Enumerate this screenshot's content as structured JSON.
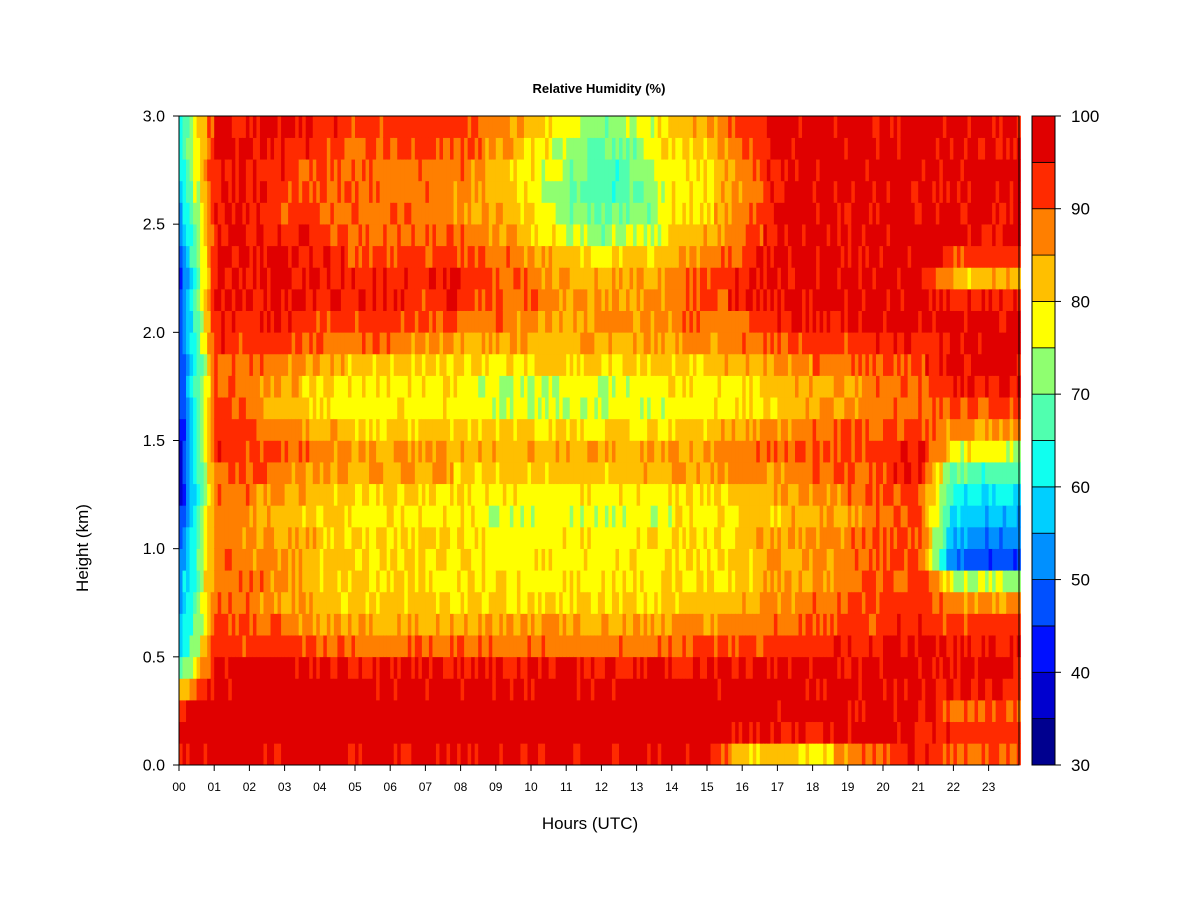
{
  "chart_data": {
    "type": "heatmap",
    "title": "Relative Humidity (%)",
    "xlabel": "Hours (UTC)",
    "ylabel": "Height (km)",
    "xlim": [
      0,
      23.9
    ],
    "ylim": [
      0.0,
      3.0
    ],
    "x_tick_labels": [
      "00",
      "01",
      "02",
      "03",
      "04",
      "05",
      "06",
      "07",
      "08",
      "09",
      "10",
      "11",
      "12",
      "13",
      "14",
      "15",
      "16",
      "17",
      "18",
      "19",
      "20",
      "21",
      "22",
      "23"
    ],
    "y_tick_labels": [
      "0.0",
      "0.5",
      "1.0",
      "1.5",
      "2.0",
      "2.5",
      "3.0"
    ],
    "y_ticks": [
      0.0,
      0.5,
      1.0,
      1.5,
      2.0,
      2.5,
      3.0
    ],
    "colorbar": {
      "min": 30,
      "max": 100,
      "tick_values": [
        30,
        40,
        50,
        60,
        70,
        80,
        90,
        100
      ],
      "tick_labels": [
        "30",
        "40",
        "50",
        "60",
        "70",
        "80",
        "90",
        "100"
      ],
      "levels": [
        30,
        35,
        40,
        45,
        50,
        55,
        60,
        65,
        70,
        75,
        80,
        85,
        90,
        95,
        100
      ],
      "colors": [
        "#00008f",
        "#0000cf",
        "#0010ff",
        "#0050ff",
        "#0090ff",
        "#00cfff",
        "#10ffef",
        "#50ffaf",
        "#8fff70",
        "#ffff00",
        "#ffbf00",
        "#ff7f00",
        "#ff2a00",
        "#e00000",
        "#800000"
      ]
    },
    "x_resolution_hours": 0.1,
    "y_resolution_km": 0.1,
    "y_values_km": [
      0.05,
      0.15,
      0.25,
      0.35,
      0.45,
      0.55,
      0.65,
      0.75,
      0.85,
      0.95,
      1.05,
      1.15,
      1.25,
      1.35,
      1.45,
      1.55,
      1.65,
      1.75,
      1.85,
      1.95,
      2.05,
      2.15,
      2.25,
      2.35,
      2.45,
      2.55,
      2.65,
      2.75,
      2.85,
      2.95
    ],
    "hour_columns": [
      {
        "hour": 0,
        "rh": [
          97,
          97,
          96,
          82,
          68,
          60,
          56,
          54,
          54,
          52,
          48,
          44,
          40,
          40,
          40,
          42,
          44,
          44,
          44,
          46,
          48,
          48,
          44,
          48,
          52,
          56,
          58,
          60,
          62,
          62
        ]
      },
      {
        "hour": 1,
        "rh": [
          97,
          98,
          98,
          97,
          96,
          92,
          90,
          88,
          88,
          88,
          88,
          88,
          90,
          92,
          94,
          94,
          92,
          90,
          90,
          94,
          96,
          96,
          96,
          96,
          96,
          96,
          96,
          96,
          96,
          96
        ]
      },
      {
        "hour": 2,
        "rh": [
          97,
          98,
          98,
          98,
          97,
          92,
          89,
          88,
          88,
          88,
          86,
          86,
          88,
          90,
          92,
          90,
          88,
          88,
          88,
          90,
          94,
          95,
          96,
          96,
          94,
          94,
          94,
          94,
          96,
          96
        ]
      },
      {
        "hour": 3,
        "rh": [
          97,
          98,
          98,
          98,
          97,
          92,
          88,
          86,
          86,
          86,
          84,
          82,
          84,
          88,
          90,
          86,
          82,
          84,
          86,
          90,
          94,
          96,
          96,
          96,
          94,
          92,
          92,
          92,
          94,
          96
        ]
      },
      {
        "hour": 4,
        "rh": [
          97,
          98,
          98,
          98,
          96,
          90,
          86,
          84,
          82,
          82,
          82,
          80,
          82,
          86,
          88,
          84,
          80,
          80,
          84,
          88,
          92,
          94,
          94,
          94,
          92,
          90,
          90,
          90,
          92,
          94
        ]
      },
      {
        "hour": 5,
        "rh": [
          97,
          98,
          98,
          97,
          95,
          88,
          84,
          82,
          80,
          80,
          80,
          78,
          80,
          84,
          86,
          82,
          78,
          78,
          82,
          88,
          92,
          94,
          94,
          92,
          90,
          88,
          88,
          88,
          90,
          92
        ]
      },
      {
        "hour": 6,
        "rh": [
          97,
          98,
          98,
          97,
          95,
          88,
          84,
          82,
          80,
          80,
          80,
          78,
          80,
          84,
          86,
          82,
          78,
          78,
          82,
          88,
          92,
          94,
          94,
          92,
          90,
          88,
          88,
          88,
          90,
          92
        ]
      },
      {
        "hour": 7,
        "rh": [
          97,
          98,
          98,
          97,
          95,
          88,
          84,
          82,
          80,
          80,
          80,
          78,
          80,
          84,
          86,
          82,
          78,
          78,
          82,
          86,
          90,
          92,
          94,
          92,
          90,
          88,
          88,
          88,
          90,
          92
        ]
      },
      {
        "hour": 8,
        "rh": [
          97,
          98,
          98,
          97,
          95,
          88,
          84,
          82,
          80,
          80,
          80,
          78,
          80,
          82,
          84,
          82,
          78,
          78,
          82,
          86,
          90,
          94,
          96,
          92,
          88,
          86,
          86,
          88,
          90,
          92
        ]
      },
      {
        "hour": 9,
        "rh": [
          97,
          98,
          98,
          97,
          95,
          88,
          84,
          80,
          78,
          78,
          78,
          76,
          78,
          82,
          84,
          80,
          76,
          76,
          80,
          86,
          88,
          90,
          90,
          88,
          86,
          84,
          84,
          84,
          86,
          88
        ]
      },
      {
        "hour": 10,
        "rh": [
          97,
          98,
          98,
          97,
          95,
          88,
          84,
          80,
          78,
          78,
          78,
          76,
          78,
          82,
          84,
          80,
          76,
          76,
          80,
          84,
          86,
          88,
          88,
          86,
          82,
          80,
          78,
          78,
          80,
          82
        ]
      },
      {
        "hour": 11,
        "rh": [
          97,
          98,
          98,
          97,
          95,
          88,
          84,
          80,
          78,
          78,
          78,
          76,
          78,
          82,
          84,
          80,
          76,
          76,
          80,
          84,
          86,
          86,
          84,
          82,
          76,
          72,
          72,
          72,
          74,
          76
        ]
      },
      {
        "hour": 12,
        "rh": [
          97,
          98,
          98,
          97,
          95,
          88,
          84,
          80,
          78,
          78,
          78,
          76,
          78,
          82,
          84,
          80,
          76,
          76,
          80,
          84,
          86,
          86,
          84,
          80,
          72,
          68,
          66,
          66,
          68,
          72
        ]
      },
      {
        "hour": 13,
        "rh": [
          97,
          98,
          98,
          97,
          95,
          88,
          84,
          80,
          78,
          78,
          78,
          76,
          78,
          82,
          84,
          80,
          76,
          76,
          80,
          84,
          86,
          86,
          84,
          80,
          74,
          70,
          70,
          70,
          72,
          74
        ]
      },
      {
        "hour": 14,
        "rh": [
          97,
          98,
          98,
          97,
          95,
          90,
          86,
          82,
          80,
          80,
          80,
          78,
          80,
          84,
          86,
          82,
          78,
          78,
          82,
          86,
          88,
          88,
          86,
          84,
          80,
          78,
          78,
          78,
          80,
          82
        ]
      },
      {
        "hour": 15,
        "rh": [
          96,
          98,
          98,
          97,
          95,
          90,
          86,
          82,
          80,
          80,
          80,
          78,
          80,
          84,
          86,
          82,
          78,
          78,
          82,
          86,
          88,
          90,
          90,
          88,
          84,
          82,
          80,
          80,
          82,
          84
        ]
      },
      {
        "hour": 16,
        "rh": [
          80,
          96,
          97,
          97,
          96,
          92,
          88,
          84,
          82,
          82,
          82,
          80,
          82,
          86,
          88,
          84,
          80,
          80,
          84,
          88,
          90,
          94,
          96,
          92,
          88,
          86,
          86,
          88,
          90,
          92
        ]
      },
      {
        "hour": 17,
        "rh": [
          84,
          96,
          97,
          97,
          96,
          92,
          88,
          86,
          84,
          84,
          84,
          82,
          84,
          86,
          88,
          86,
          82,
          82,
          86,
          90,
          94,
          96,
          96,
          96,
          96,
          96,
          96,
          96,
          96,
          96
        ]
      },
      {
        "hour": 18,
        "rh": [
          76,
          94,
          97,
          97,
          96,
          93,
          90,
          88,
          86,
          86,
          86,
          84,
          86,
          88,
          90,
          88,
          84,
          84,
          88,
          92,
          95,
          96,
          97,
          97,
          97,
          97,
          97,
          97,
          97,
          97
        ]
      },
      {
        "hour": 19,
        "rh": [
          88,
          96,
          97,
          97,
          96,
          94,
          92,
          90,
          88,
          88,
          88,
          86,
          88,
          90,
          92,
          90,
          86,
          86,
          90,
          92,
          96,
          97,
          97,
          97,
          97,
          97,
          97,
          97,
          97,
          97
        ]
      },
      {
        "hour": 20,
        "rh": [
          90,
          96,
          97,
          97,
          97,
          95,
          93,
          92,
          90,
          90,
          90,
          88,
          90,
          92,
          92,
          90,
          88,
          88,
          90,
          94,
          96,
          97,
          97,
          97,
          97,
          97,
          97,
          97,
          97,
          97
        ]
      },
      {
        "hour": 21,
        "rh": [
          94,
          97,
          97,
          97,
          97,
          96,
          94,
          93,
          92,
          92,
          92,
          90,
          92,
          94,
          94,
          92,
          90,
          90,
          92,
          95,
          97,
          97,
          97,
          97,
          97,
          97,
          97,
          97,
          97,
          97
        ]
      },
      {
        "hour": 22,
        "rh": [
          90,
          92,
          88,
          94,
          96,
          95,
          92,
          86,
          74,
          48,
          54,
          58,
          62,
          68,
          78,
          86,
          92,
          94,
          96,
          96,
          97,
          94,
          82,
          92,
          96,
          97,
          97,
          97,
          97,
          97
        ]
      },
      {
        "hour": 23,
        "rh": [
          90,
          92,
          90,
          94,
          96,
          95,
          92,
          86,
          74,
          46,
          52,
          56,
          60,
          66,
          76,
          86,
          92,
          94,
          96,
          96,
          97,
          94,
          84,
          92,
          96,
          97,
          97,
          97,
          97,
          97
        ]
      }
    ]
  }
}
